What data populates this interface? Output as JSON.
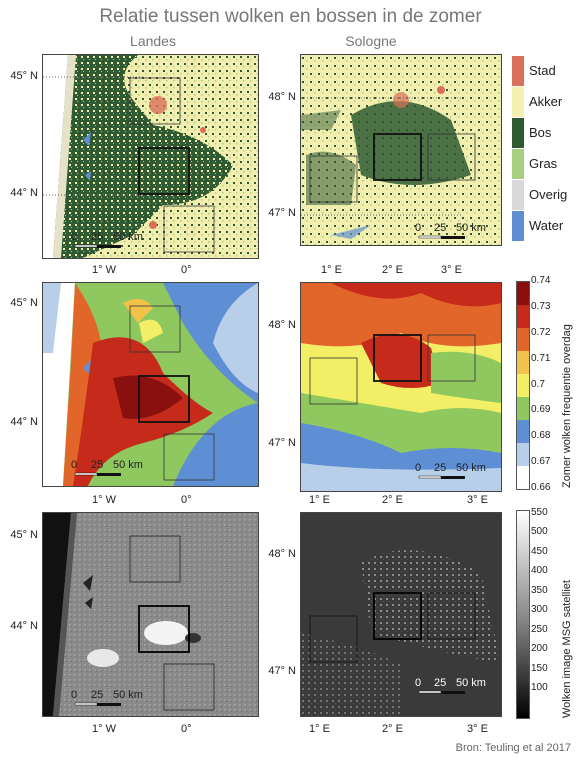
{
  "title": "Relatie tussen wolken en bossen in de zomer",
  "columns": {
    "left": "Landes",
    "right": "Sologne"
  },
  "axes": {
    "landes_lat": [
      "45° N",
      "44° N"
    ],
    "landes_lon": [
      "1° W",
      "0°"
    ],
    "sologne_lat": [
      "48° N",
      "47° N"
    ],
    "sologne_lon": [
      "1° E",
      "2° E",
      "3° E"
    ]
  },
  "scalebar": {
    "ticks": [
      "0",
      "25",
      "50 km"
    ]
  },
  "landcover_legend": {
    "items": [
      {
        "label": "Stad",
        "color": "#d8705a"
      },
      {
        "label": "Akker",
        "color": "#f4f0b0"
      },
      {
        "label": "Bos",
        "color": "#2f5a32"
      },
      {
        "label": "Gras",
        "color": "#a9d080"
      },
      {
        "label": "Overig",
        "color": "#d9d9d9"
      },
      {
        "label": "Water",
        "color": "#5f8fd0"
      }
    ]
  },
  "cloud_freq_colorbar": {
    "label": "Zomer wolken frequentie overdag",
    "ticks": [
      "0.74",
      "0.73",
      "0.72",
      "0.71",
      "0.7",
      "0.69",
      "0.68",
      "0.67",
      "0.66"
    ],
    "colors": [
      "#8a1010",
      "#c62a1a",
      "#e2662a",
      "#f3c24a",
      "#f2ef66",
      "#8fc85e",
      "#5e8fd4",
      "#b8cfea",
      "#ffffff"
    ]
  },
  "satellite_colorbar": {
    "label": "Wolken image MSG satelliet",
    "ticks": [
      "550",
      "500",
      "450",
      "400",
      "350",
      "300",
      "250",
      "200",
      "150",
      "100"
    ]
  },
  "source": "Bron: Teuling et al 2017"
}
